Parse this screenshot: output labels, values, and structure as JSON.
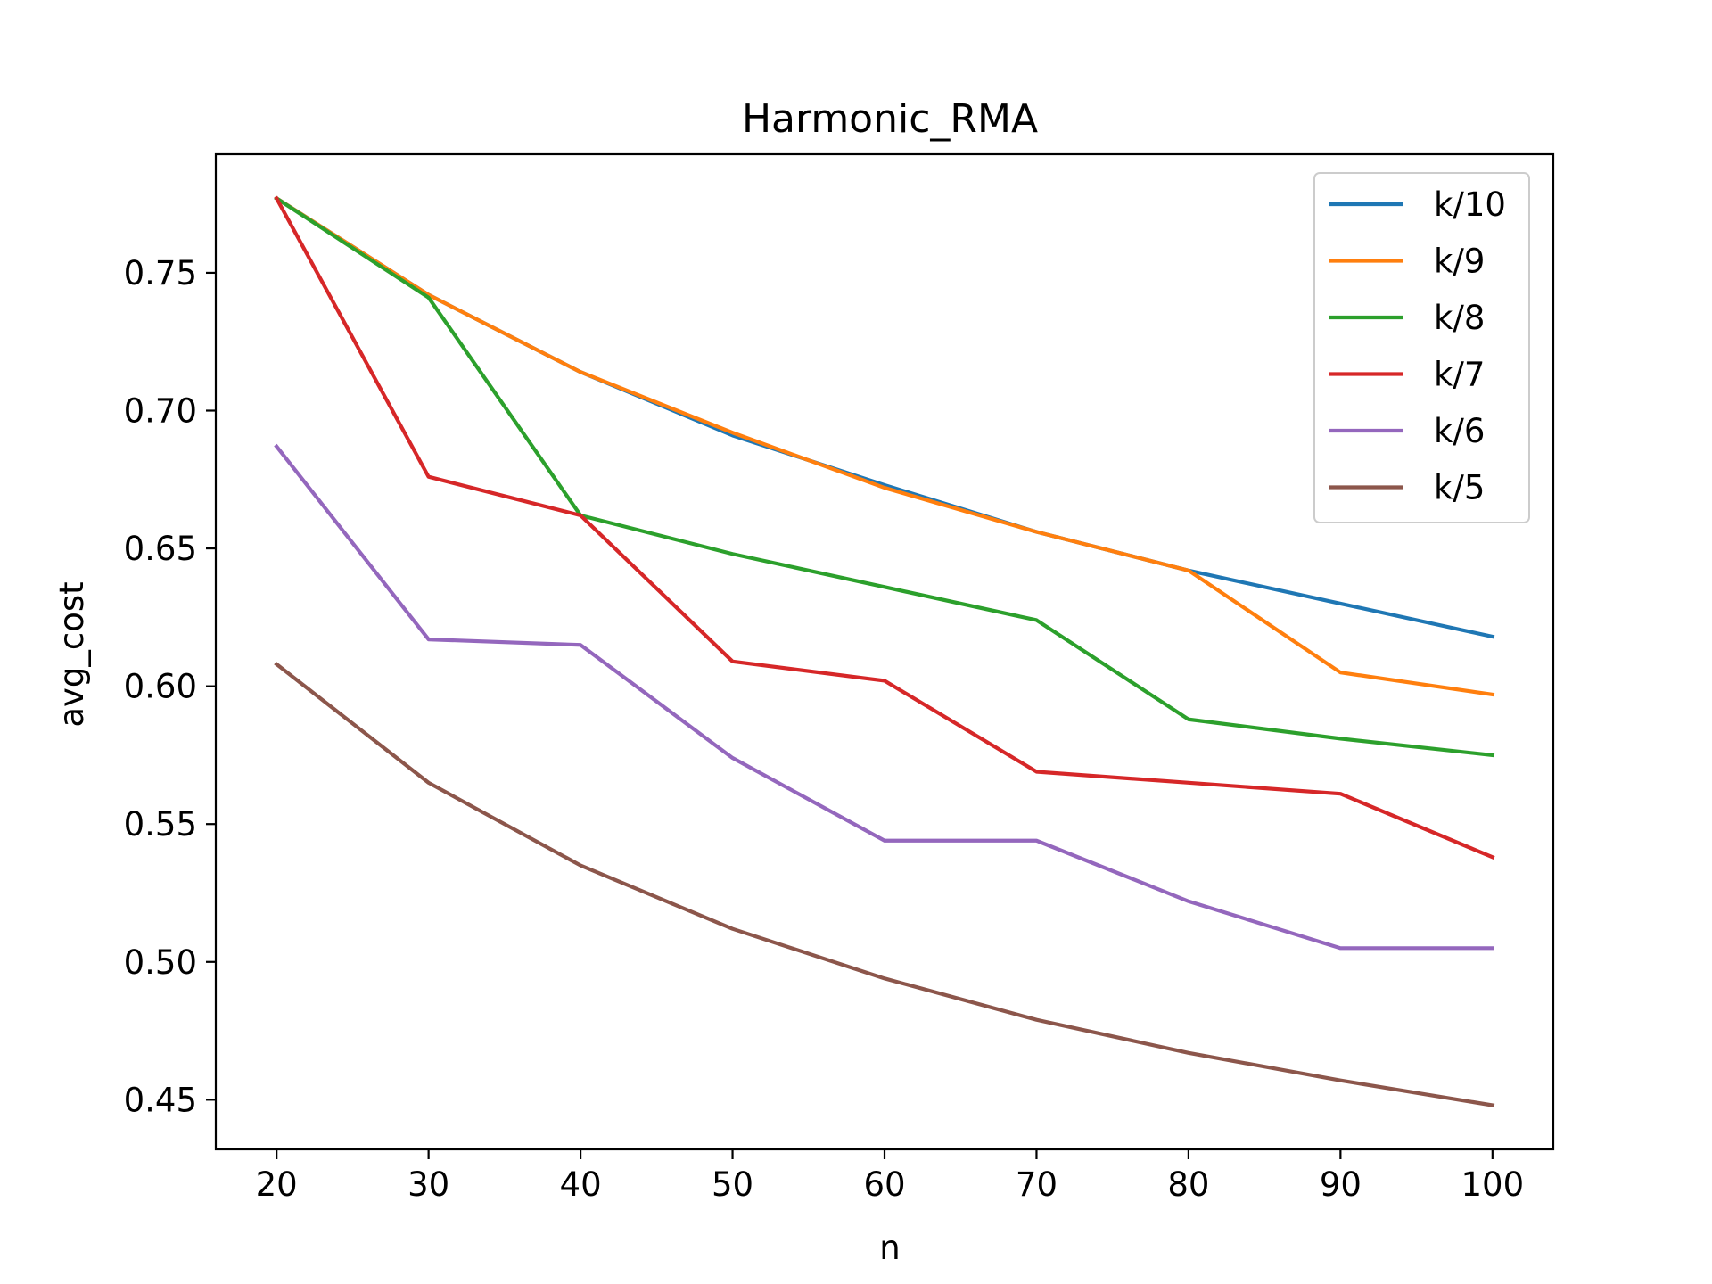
{
  "chart_data": {
    "type": "line",
    "title": "Harmonic_RMA",
    "xlabel": "n",
    "ylabel": "avg_cost",
    "x": [
      20,
      30,
      40,
      50,
      60,
      70,
      80,
      90,
      100
    ],
    "xticks": [
      20,
      30,
      40,
      50,
      60,
      70,
      80,
      90,
      100
    ],
    "xtick_labels": [
      "20",
      "30",
      "40",
      "50",
      "60",
      "70",
      "80",
      "90",
      "100"
    ],
    "yticks": [
      0.45,
      0.5,
      0.55,
      0.6,
      0.65,
      0.7,
      0.75
    ],
    "ytick_labels": [
      "0.45",
      "0.50",
      "0.55",
      "0.60",
      "0.65",
      "0.70",
      "0.75"
    ],
    "xlim": [
      16,
      104
    ],
    "ylim": [
      0.432,
      0.793
    ],
    "grid": false,
    "legend_position": "top-right",
    "series": [
      {
        "name": "k/10",
        "color": "#1f77b4",
        "values": [
          0.777,
          0.742,
          0.714,
          0.691,
          0.673,
          0.656,
          0.642,
          0.63,
          0.618
        ]
      },
      {
        "name": "k/9",
        "color": "#ff7f0e",
        "values": [
          0.777,
          0.742,
          0.714,
          0.692,
          0.672,
          0.656,
          0.642,
          0.605,
          0.597
        ]
      },
      {
        "name": "k/8",
        "color": "#2ca02c",
        "values": [
          0.777,
          0.741,
          0.662,
          0.648,
          0.636,
          0.624,
          0.588,
          0.581,
          0.575
        ]
      },
      {
        "name": "k/7",
        "color": "#d62728",
        "values": [
          0.777,
          0.676,
          0.662,
          0.609,
          0.602,
          0.569,
          0.565,
          0.561,
          0.538
        ]
      },
      {
        "name": "k/6",
        "color": "#9467bd",
        "values": [
          0.687,
          0.617,
          0.615,
          0.574,
          0.544,
          0.544,
          0.522,
          0.505,
          0.505
        ]
      },
      {
        "name": "k/5",
        "color": "#8c564b",
        "values": [
          0.608,
          0.565,
          0.535,
          0.512,
          0.494,
          0.479,
          0.467,
          0.457,
          0.448
        ]
      }
    ]
  }
}
